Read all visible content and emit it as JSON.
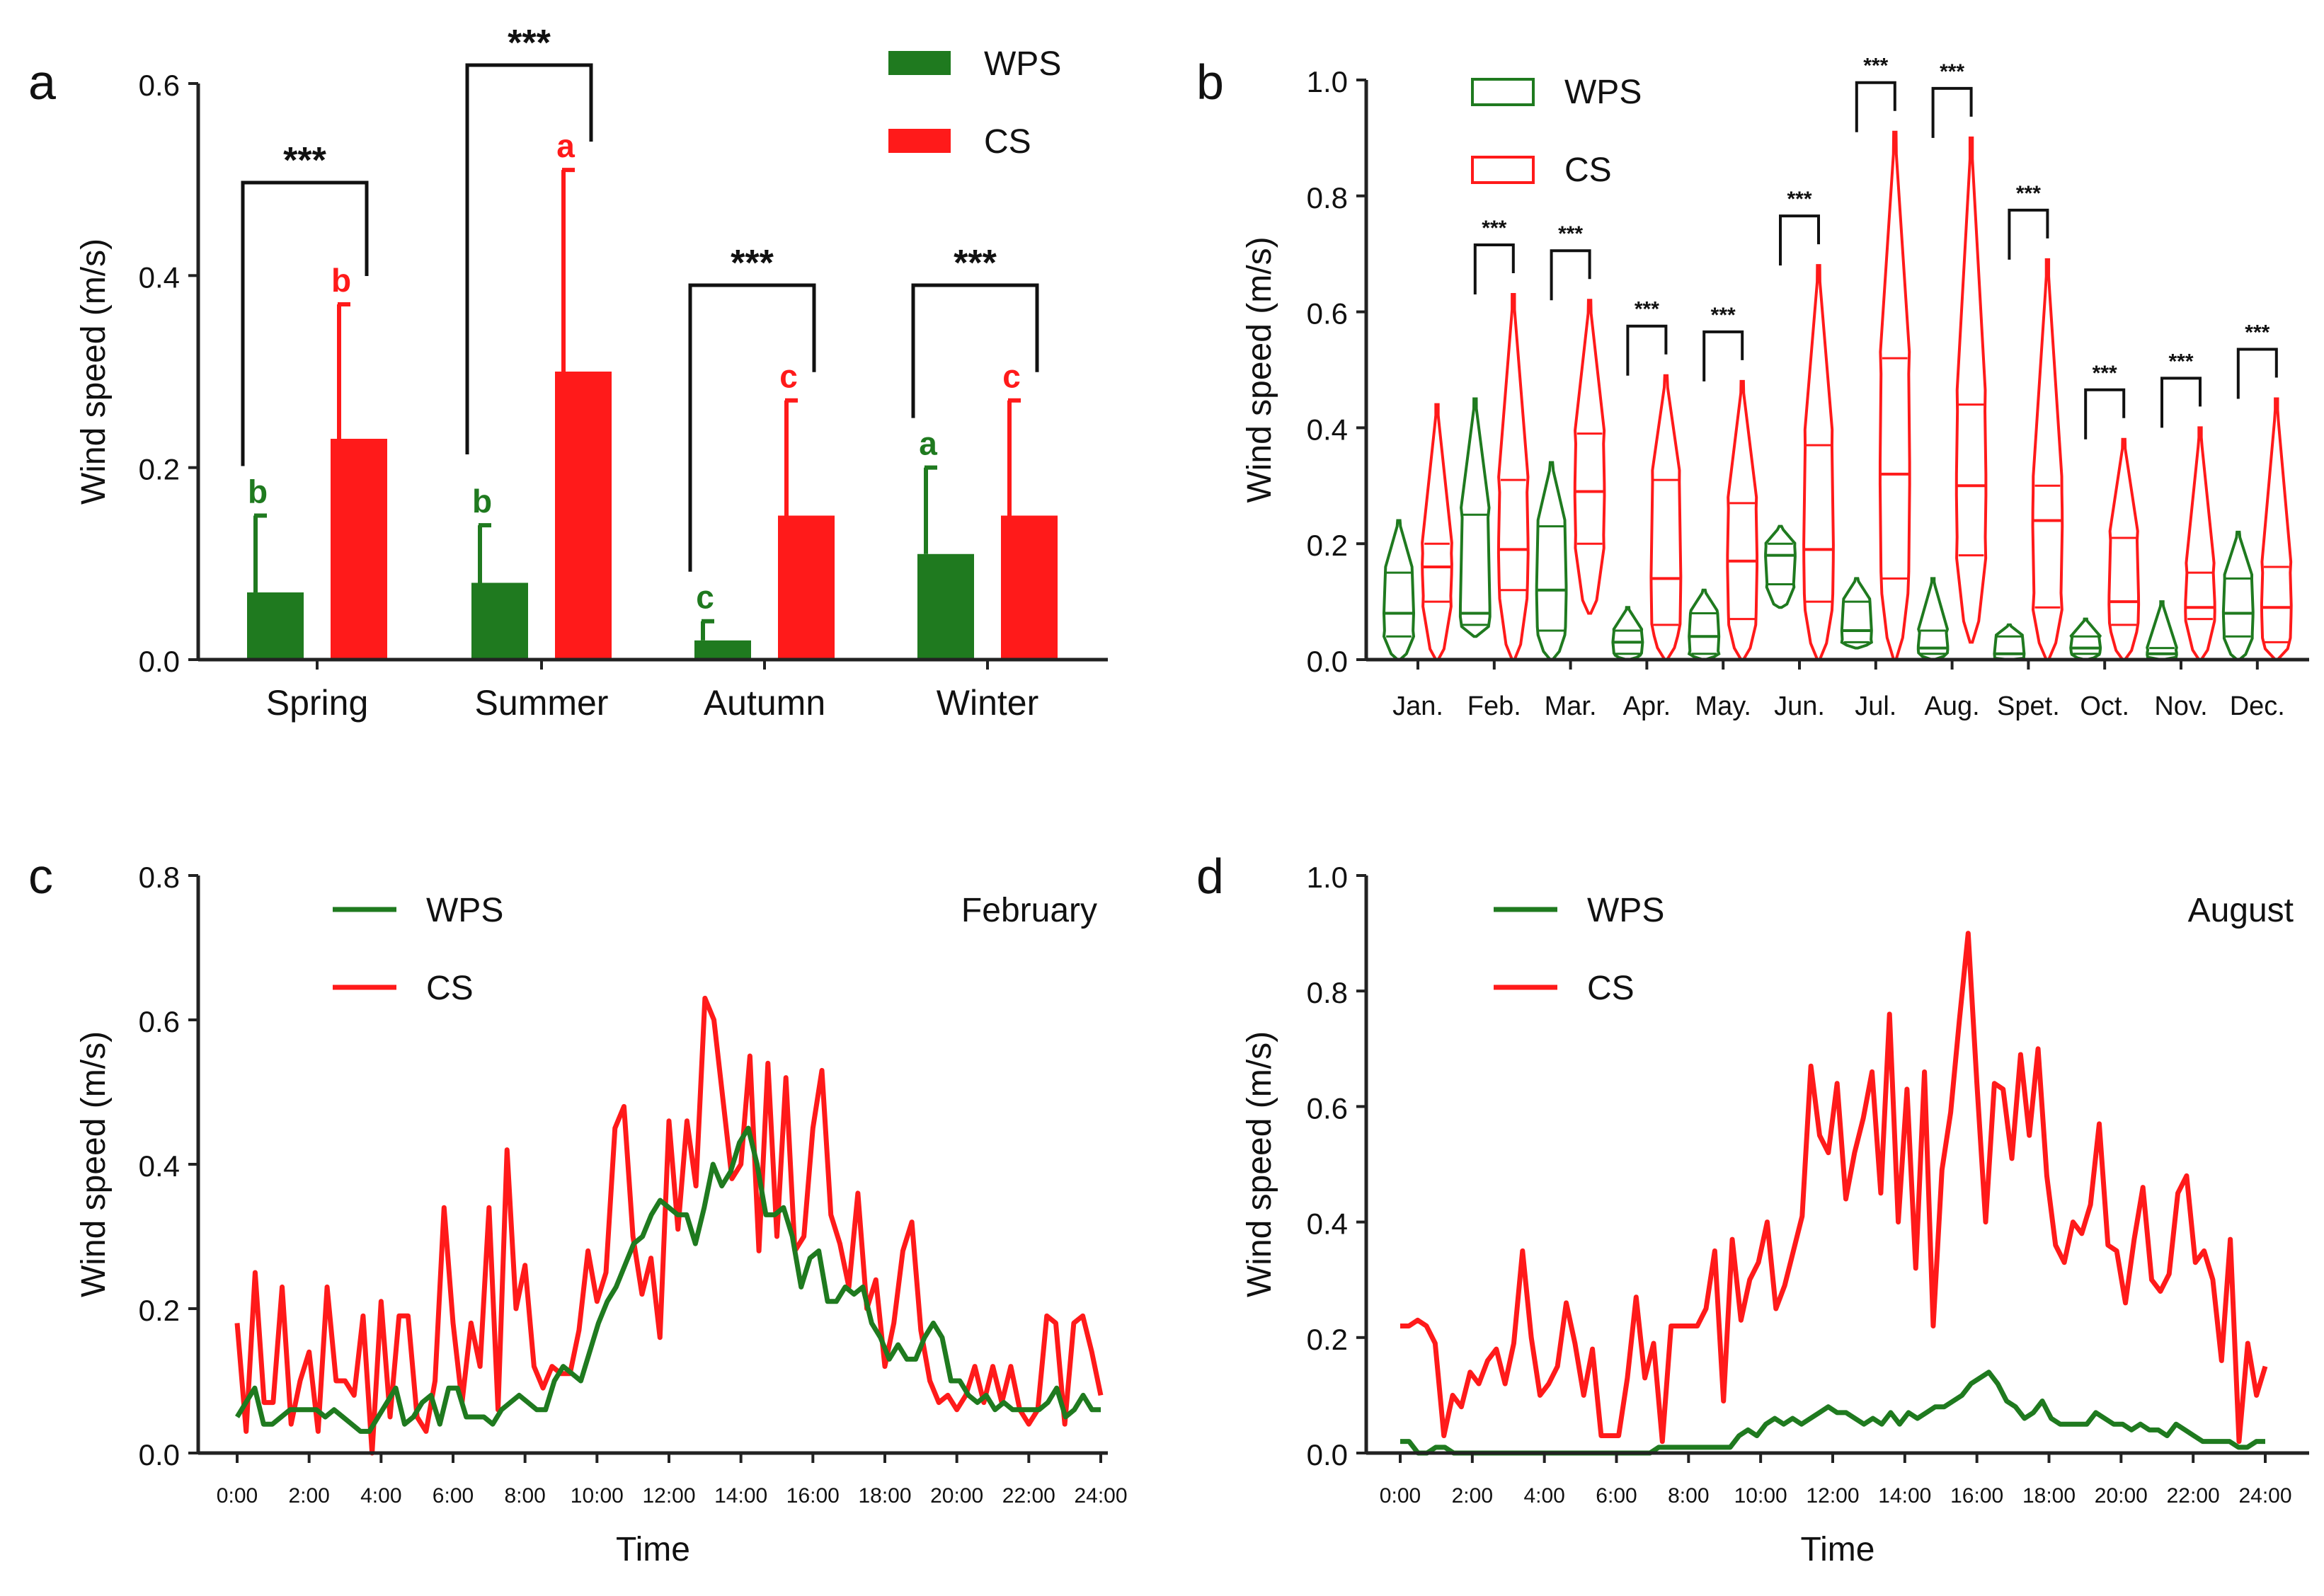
{
  "colors": {
    "wps": "#1f7a1f",
    "cs": "#ff1a1a",
    "axis": "#222222"
  },
  "chart_data": [
    {
      "panel_label": "a",
      "type": "bar",
      "ylabel": "Wind speed (m/s)",
      "ylim": [
        0,
        0.6
      ],
      "yticks": [
        "0.0",
        "0.2",
        "0.4",
        "0.6"
      ],
      "categories": [
        "Spring",
        "Summer",
        "Autumn",
        "Winter"
      ],
      "legend": [
        "WPS",
        "CS"
      ],
      "series": [
        {
          "name": "WPS",
          "values": [
            0.07,
            0.08,
            0.02,
            0.11
          ],
          "errors": [
            0.08,
            0.06,
            0.02,
            0.09
          ],
          "letters": [
            "b",
            "b",
            "c",
            "a"
          ]
        },
        {
          "name": "CS",
          "values": [
            0.23,
            0.3,
            0.15,
            0.15
          ],
          "errors": [
            0.14,
            0.21,
            0.12,
            0.12
          ],
          "letters": [
            "b",
            "a",
            "c",
            "c"
          ]
        }
      ],
      "significance": [
        "***",
        "***",
        "***",
        "***"
      ]
    },
    {
      "panel_label": "b",
      "type": "violin",
      "ylabel": "Wind speed (m/s)",
      "ylim": [
        0,
        1.0
      ],
      "yticks": [
        "0.0",
        "0.2",
        "0.4",
        "0.6",
        "0.8",
        "1.0"
      ],
      "categories": [
        "Jan.",
        "Feb.",
        "Mar.",
        "Apr.",
        "May.",
        "Jun.",
        "Jul.",
        "Aug.",
        "Spet.",
        "Oct.",
        "Nov.",
        "Dec."
      ],
      "legend": [
        "WPS",
        "CS"
      ],
      "significance": [
        "",
        "***",
        "***",
        "***",
        "***",
        "***",
        "***",
        "***",
        "***",
        "***",
        "***",
        "***"
      ],
      "series": [
        {
          "name": "WPS",
          "min": [
            0.0,
            0.04,
            0.0,
            0.0,
            0.0,
            0.09,
            0.02,
            0.0,
            0.0,
            0.0,
            0.0,
            0.0
          ],
          "max": [
            0.24,
            0.45,
            0.34,
            0.09,
            0.12,
            0.23,
            0.14,
            0.14,
            0.06,
            0.07,
            0.1,
            0.22
          ],
          "q1": [
            0.04,
            0.06,
            0.05,
            0.01,
            0.01,
            0.13,
            0.03,
            0.01,
            0.0,
            0.01,
            0.0,
            0.04
          ],
          "median": [
            0.08,
            0.08,
            0.12,
            0.03,
            0.04,
            0.18,
            0.05,
            0.02,
            0.01,
            0.02,
            0.01,
            0.08
          ],
          "q3": [
            0.15,
            0.25,
            0.23,
            0.05,
            0.08,
            0.2,
            0.1,
            0.05,
            0.04,
            0.04,
            0.02,
            0.14
          ]
        },
        {
          "name": "CS",
          "min": [
            0.0,
            0.0,
            0.08,
            0.0,
            0.0,
            0.0,
            0.0,
            0.03,
            0.0,
            0.0,
            0.0,
            0.0
          ],
          "max": [
            0.44,
            0.63,
            0.62,
            0.49,
            0.48,
            0.68,
            0.91,
            0.9,
            0.69,
            0.38,
            0.4,
            0.45
          ],
          "q1": [
            0.1,
            0.12,
            0.2,
            0.06,
            0.07,
            0.1,
            0.14,
            0.18,
            0.09,
            0.06,
            0.07,
            0.03
          ],
          "median": [
            0.16,
            0.19,
            0.29,
            0.14,
            0.17,
            0.19,
            0.32,
            0.3,
            0.24,
            0.1,
            0.09,
            0.09
          ],
          "q3": [
            0.2,
            0.31,
            0.39,
            0.31,
            0.27,
            0.37,
            0.52,
            0.44,
            0.3,
            0.21,
            0.15,
            0.16
          ]
        }
      ]
    },
    {
      "panel_label": "c",
      "type": "line",
      "annotation": "February",
      "xlabel": "Time",
      "ylabel": "Wind speed (m/s)",
      "ylim": [
        0,
        0.8
      ],
      "yticks": [
        "0.0",
        "0.2",
        "0.4",
        "0.6",
        "0.8"
      ],
      "xlim": [
        0,
        24
      ],
      "xticks": [
        "0:00",
        "2:00",
        "4:00",
        "6:00",
        "8:00",
        "10:00",
        "12:00",
        "14:00",
        "16:00",
        "18:00",
        "20:00",
        "22:00",
        "24:00"
      ],
      "legend": [
        "WPS",
        "CS"
      ],
      "series": [
        {
          "name": "WPS",
          "values": [
            0.05,
            0.07,
            0.09,
            0.04,
            0.04,
            0.05,
            0.06,
            0.06,
            0.06,
            0.06,
            0.05,
            0.06,
            0.05,
            0.04,
            0.03,
            0.03,
            0.05,
            0.07,
            0.09,
            0.04,
            0.05,
            0.07,
            0.08,
            0.04,
            0.09,
            0.09,
            0.05,
            0.05,
            0.05,
            0.04,
            0.06,
            0.07,
            0.08,
            0.07,
            0.06,
            0.06,
            0.1,
            0.12,
            0.11,
            0.1,
            0.14,
            0.18,
            0.21,
            0.23,
            0.26,
            0.29,
            0.3,
            0.33,
            0.35,
            0.34,
            0.33,
            0.33,
            0.29,
            0.34,
            0.4,
            0.37,
            0.39,
            0.43,
            0.45,
            0.4,
            0.33,
            0.33,
            0.34,
            0.3,
            0.23,
            0.27,
            0.28,
            0.21,
            0.21,
            0.23,
            0.22,
            0.23,
            0.18,
            0.16,
            0.13,
            0.15,
            0.13,
            0.13,
            0.16,
            0.18,
            0.16,
            0.1,
            0.1,
            0.08,
            0.07,
            0.08,
            0.06,
            0.07,
            0.06,
            0.06,
            0.06,
            0.06,
            0.07,
            0.09,
            0.05,
            0.06,
            0.08,
            0.06,
            0.06
          ]
        },
        {
          "name": "CS",
          "values": [
            0.18,
            0.03,
            0.25,
            0.07,
            0.07,
            0.23,
            0.04,
            0.1,
            0.14,
            0.03,
            0.23,
            0.1,
            0.1,
            0.08,
            0.19,
            0.0,
            0.21,
            0.05,
            0.19,
            0.19,
            0.05,
            0.03,
            0.1,
            0.34,
            0.18,
            0.07,
            0.18,
            0.12,
            0.34,
            0.06,
            0.42,
            0.2,
            0.26,
            0.12,
            0.09,
            0.12,
            0.11,
            0.11,
            0.17,
            0.28,
            0.21,
            0.25,
            0.45,
            0.48,
            0.3,
            0.22,
            0.27,
            0.16,
            0.46,
            0.31,
            0.46,
            0.37,
            0.63,
            0.6,
            0.49,
            0.38,
            0.4,
            0.55,
            0.28,
            0.54,
            0.3,
            0.52,
            0.28,
            0.3,
            0.45,
            0.53,
            0.33,
            0.29,
            0.23,
            0.36,
            0.2,
            0.24,
            0.12,
            0.18,
            0.28,
            0.32,
            0.17,
            0.1,
            0.07,
            0.08,
            0.06,
            0.08,
            0.12,
            0.07,
            0.12,
            0.07,
            0.12,
            0.06,
            0.04,
            0.06,
            0.19,
            0.18,
            0.04,
            0.18,
            0.19,
            0.14,
            0.08
          ]
        }
      ]
    },
    {
      "panel_label": "d",
      "type": "line",
      "annotation": "August",
      "xlabel": "Time",
      "ylabel": "Wind speed (m/s)",
      "ylim": [
        0,
        1.0
      ],
      "yticks": [
        "0.0",
        "0.2",
        "0.4",
        "0.6",
        "0.8",
        "1.0"
      ],
      "xlim": [
        0,
        24
      ],
      "xticks": [
        "0:00",
        "2:00",
        "4:00",
        "6:00",
        "8:00",
        "10:00",
        "12:00",
        "14:00",
        "16:00",
        "18:00",
        "20:00",
        "22:00",
        "24:00"
      ],
      "legend": [
        "WPS",
        "CS"
      ],
      "series": [
        {
          "name": "WPS",
          "values": [
            0.02,
            0.02,
            0.0,
            0.0,
            0.01,
            0.01,
            0.0,
            0.0,
            0.0,
            0.0,
            0.0,
            0.0,
            0.0,
            0.0,
            0.0,
            0.0,
            0.0,
            0.0,
            0.0,
            0.0,
            0.0,
            0.0,
            0.0,
            0.0,
            0.0,
            0.0,
            0.0,
            0.0,
            0.0,
            0.01,
            0.01,
            0.01,
            0.01,
            0.01,
            0.01,
            0.01,
            0.01,
            0.01,
            0.03,
            0.04,
            0.03,
            0.05,
            0.06,
            0.05,
            0.06,
            0.05,
            0.06,
            0.07,
            0.08,
            0.07,
            0.07,
            0.06,
            0.05,
            0.06,
            0.05,
            0.07,
            0.05,
            0.07,
            0.06,
            0.07,
            0.08,
            0.08,
            0.09,
            0.1,
            0.12,
            0.13,
            0.14,
            0.12,
            0.09,
            0.08,
            0.06,
            0.07,
            0.09,
            0.06,
            0.05,
            0.05,
            0.05,
            0.05,
            0.07,
            0.06,
            0.05,
            0.05,
            0.04,
            0.05,
            0.04,
            0.04,
            0.03,
            0.05,
            0.04,
            0.03,
            0.02,
            0.02,
            0.02,
            0.02,
            0.01,
            0.01,
            0.02,
            0.02
          ]
        },
        {
          "name": "CS",
          "values": [
            0.22,
            0.22,
            0.23,
            0.22,
            0.19,
            0.03,
            0.1,
            0.08,
            0.14,
            0.12,
            0.16,
            0.18,
            0.12,
            0.19,
            0.35,
            0.2,
            0.1,
            0.12,
            0.15,
            0.26,
            0.19,
            0.1,
            0.18,
            0.03,
            0.03,
            0.03,
            0.13,
            0.27,
            0.13,
            0.19,
            0.02,
            0.22,
            0.22,
            0.22,
            0.22,
            0.25,
            0.35,
            0.09,
            0.37,
            0.23,
            0.3,
            0.33,
            0.4,
            0.25,
            0.29,
            0.35,
            0.41,
            0.67,
            0.55,
            0.52,
            0.64,
            0.44,
            0.52,
            0.58,
            0.66,
            0.45,
            0.76,
            0.4,
            0.63,
            0.32,
            0.66,
            0.22,
            0.49,
            0.59,
            0.75,
            0.9,
            0.64,
            0.4,
            0.64,
            0.63,
            0.51,
            0.69,
            0.55,
            0.7,
            0.48,
            0.36,
            0.33,
            0.4,
            0.38,
            0.43,
            0.57,
            0.36,
            0.35,
            0.26,
            0.37,
            0.46,
            0.3,
            0.28,
            0.31,
            0.45,
            0.48,
            0.33,
            0.35,
            0.3,
            0.16,
            0.37,
            0.02,
            0.19,
            0.1,
            0.15
          ]
        }
      ]
    }
  ]
}
